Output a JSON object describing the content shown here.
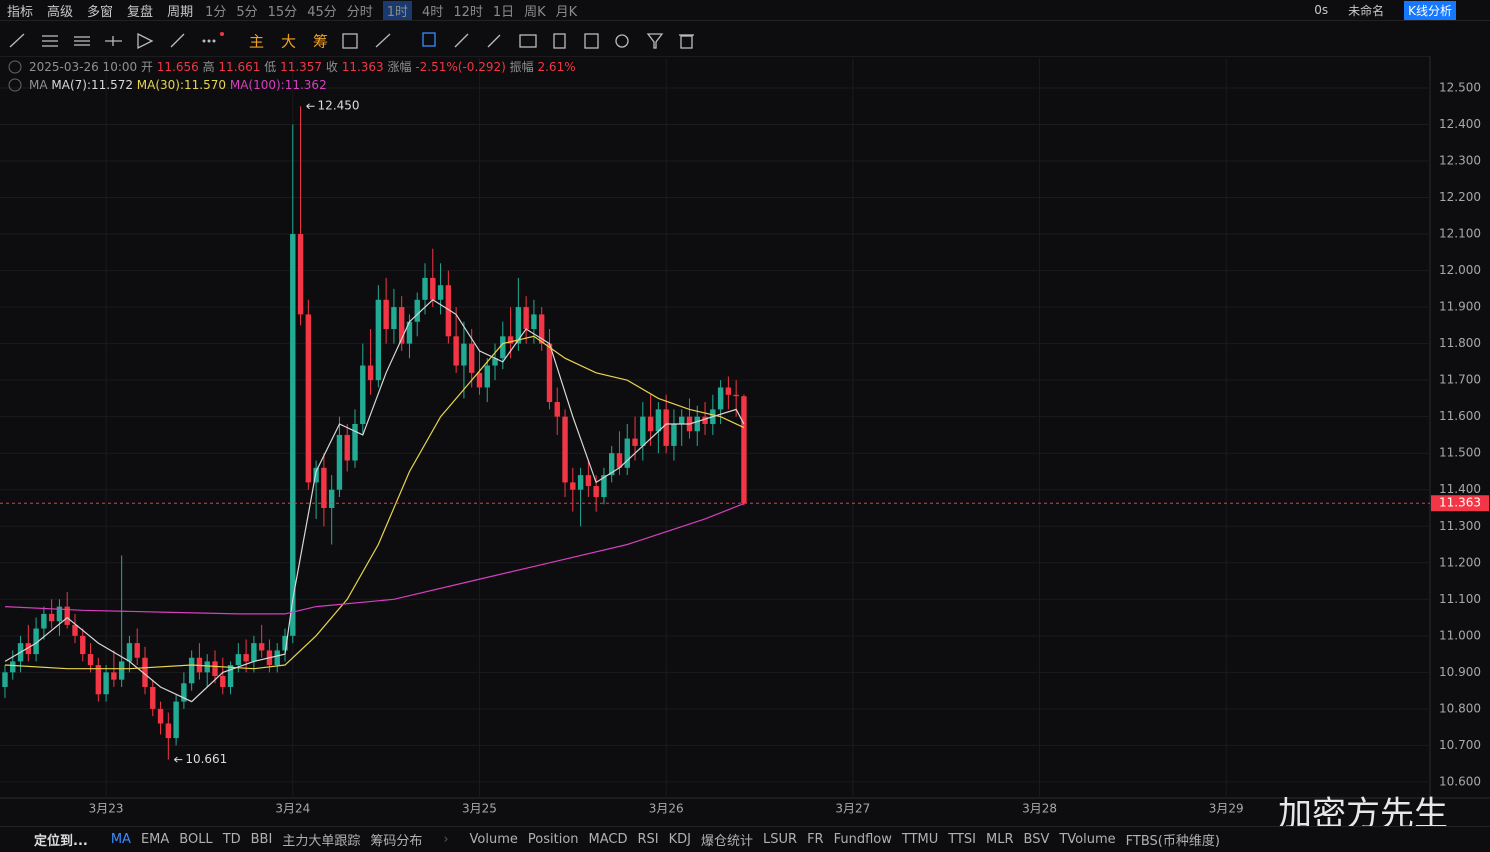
{
  "toolbar": {
    "left": [
      "指标",
      "高级",
      "多窗",
      "复盘"
    ],
    "period_label": "周期",
    "periods": [
      "1分",
      "5分",
      "15分",
      "45分",
      "分时",
      "1时",
      "4时",
      "12时",
      "1日",
      "周K",
      "月K"
    ],
    "active_period": 5,
    "right": [
      "0s",
      "未命名"
    ],
    "analysis": "K线分析"
  },
  "tools2": [
    "主",
    "大",
    "筹"
  ],
  "info": {
    "time": "2025-03-26 10:00",
    "fields": [
      {
        "label": "开",
        "value": 11.656
      },
      {
        "label": "高",
        "value": 11.661
      },
      {
        "label": "低",
        "value": 11.357
      },
      {
        "label": "收",
        "value": 11.363
      },
      {
        "label": "涨幅",
        "value": "-2.51%(-0.292)"
      },
      {
        "label": "振幅",
        "value": "2.61%"
      }
    ]
  },
  "ma_label": "MA",
  "chart_data": {
    "type": "candlestick",
    "up_color": "#22ab94",
    "down_color": "#f23645",
    "candles": [
      [
        10.86,
        10.92,
        10.83,
        10.9
      ],
      [
        10.9,
        10.96,
        10.88,
        10.93
      ],
      [
        10.93,
        11.0,
        10.9,
        10.98
      ],
      [
        10.98,
        11.03,
        10.93,
        10.95
      ],
      [
        10.95,
        11.05,
        10.93,
        11.02
      ],
      [
        11.02,
        11.08,
        10.99,
        11.06
      ],
      [
        11.06,
        11.1,
        11.02,
        11.04
      ],
      [
        11.04,
        11.1,
        11.0,
        11.08
      ],
      [
        11.08,
        11.12,
        11.02,
        11.03
      ],
      [
        11.03,
        11.06,
        10.98,
        11.0
      ],
      [
        11.0,
        11.02,
        10.93,
        10.95
      ],
      [
        10.95,
        10.98,
        10.9,
        10.92
      ],
      [
        10.92,
        10.94,
        10.82,
        10.84
      ],
      [
        10.84,
        10.92,
        10.82,
        10.9
      ],
      [
        10.9,
        10.96,
        10.86,
        10.88
      ],
      [
        10.88,
        11.22,
        10.86,
        10.93
      ],
      [
        10.93,
        11.0,
        10.9,
        10.98
      ],
      [
        10.98,
        11.02,
        10.92,
        10.94
      ],
      [
        10.94,
        10.97,
        10.84,
        10.86
      ],
      [
        10.86,
        10.88,
        10.78,
        10.8
      ],
      [
        10.8,
        10.82,
        10.73,
        10.76
      ],
      [
        10.76,
        10.79,
        10.661,
        10.72
      ],
      [
        10.72,
        10.84,
        10.7,
        10.82
      ],
      [
        10.82,
        10.9,
        10.8,
        10.87
      ],
      [
        10.87,
        10.96,
        10.85,
        10.94
      ],
      [
        10.94,
        10.98,
        10.88,
        10.9
      ],
      [
        10.9,
        10.95,
        10.86,
        10.93
      ],
      [
        10.93,
        10.96,
        10.87,
        10.89
      ],
      [
        10.89,
        10.94,
        10.84,
        10.86
      ],
      [
        10.86,
        10.93,
        10.84,
        10.92
      ],
      [
        10.92,
        10.98,
        10.9,
        10.95
      ],
      [
        10.95,
        10.99,
        10.9,
        10.93
      ],
      [
        10.93,
        11.0,
        10.9,
        10.98
      ],
      [
        10.98,
        11.03,
        10.94,
        10.96
      ],
      [
        10.96,
        10.99,
        10.9,
        10.92
      ],
      [
        10.92,
        10.98,
        10.9,
        10.96
      ],
      [
        10.96,
        11.02,
        10.93,
        11.0
      ],
      [
        11.0,
        12.4,
        10.98,
        12.1
      ],
      [
        12.1,
        12.45,
        11.85,
        11.88
      ],
      [
        11.88,
        11.92,
        11.4,
        11.42
      ],
      [
        11.42,
        11.48,
        11.32,
        11.46
      ],
      [
        11.46,
        11.5,
        11.3,
        11.35
      ],
      [
        11.35,
        11.44,
        11.25,
        11.4
      ],
      [
        11.4,
        11.6,
        11.38,
        11.55
      ],
      [
        11.55,
        11.58,
        11.45,
        11.48
      ],
      [
        11.48,
        11.62,
        11.46,
        11.58
      ],
      [
        11.58,
        11.8,
        11.55,
        11.74
      ],
      [
        11.74,
        11.84,
        11.66,
        11.7
      ],
      [
        11.7,
        11.96,
        11.68,
        11.92
      ],
      [
        11.92,
        11.98,
        11.8,
        11.84
      ],
      [
        11.84,
        11.95,
        11.8,
        11.9
      ],
      [
        11.9,
        11.93,
        11.78,
        11.8
      ],
      [
        11.8,
        11.88,
        11.76,
        11.86
      ],
      [
        11.86,
        11.94,
        11.82,
        11.92
      ],
      [
        11.92,
        12.02,
        11.88,
        11.98
      ],
      [
        11.98,
        12.06,
        11.9,
        11.92
      ],
      [
        11.92,
        12.02,
        11.88,
        11.96
      ],
      [
        11.96,
        12.0,
        11.8,
        11.82
      ],
      [
        11.82,
        11.9,
        11.72,
        11.74
      ],
      [
        11.74,
        11.86,
        11.65,
        11.8
      ],
      [
        11.8,
        11.84,
        11.68,
        11.72
      ],
      [
        11.72,
        11.78,
        11.66,
        11.68
      ],
      [
        11.68,
        11.76,
        11.64,
        11.74
      ],
      [
        11.74,
        11.8,
        11.7,
        11.76
      ],
      [
        11.76,
        11.86,
        11.73,
        11.82
      ],
      [
        11.82,
        11.9,
        11.76,
        11.8
      ],
      [
        11.8,
        11.98,
        11.78,
        11.9
      ],
      [
        11.9,
        11.93,
        11.8,
        11.84
      ],
      [
        11.84,
        11.92,
        11.8,
        11.88
      ],
      [
        11.88,
        11.9,
        11.78,
        11.8
      ],
      [
        11.8,
        11.84,
        11.62,
        11.64
      ],
      [
        11.64,
        11.68,
        11.55,
        11.6
      ],
      [
        11.6,
        11.62,
        11.38,
        11.42
      ],
      [
        11.42,
        11.46,
        11.34,
        11.4
      ],
      [
        11.4,
        11.46,
        11.3,
        11.44
      ],
      [
        11.44,
        11.48,
        11.38,
        11.41
      ],
      [
        11.41,
        11.44,
        11.34,
        11.38
      ],
      [
        11.38,
        11.46,
        11.36,
        11.44
      ],
      [
        11.44,
        11.52,
        11.42,
        11.5
      ],
      [
        11.5,
        11.56,
        11.44,
        11.46
      ],
      [
        11.46,
        11.58,
        11.44,
        11.54
      ],
      [
        11.54,
        11.6,
        11.48,
        11.52
      ],
      [
        11.52,
        11.64,
        11.48,
        11.6
      ],
      [
        11.6,
        11.66,
        11.52,
        11.56
      ],
      [
        11.56,
        11.64,
        11.5,
        11.62
      ],
      [
        11.62,
        11.66,
        11.5,
        11.52
      ],
      [
        11.52,
        11.62,
        11.48,
        11.58
      ],
      [
        11.58,
        11.62,
        11.52,
        11.6
      ],
      [
        11.6,
        11.65,
        11.54,
        11.56
      ],
      [
        11.56,
        11.63,
        11.52,
        11.6
      ],
      [
        11.6,
        11.64,
        11.55,
        11.58
      ],
      [
        11.58,
        11.66,
        11.55,
        11.62
      ],
      [
        11.62,
        11.7,
        11.58,
        11.68
      ],
      [
        11.68,
        11.71,
        11.62,
        11.66
      ],
      [
        11.66,
        11.7,
        11.6,
        11.656
      ],
      [
        11.656,
        11.661,
        11.357,
        11.363
      ]
    ],
    "series": [
      {
        "name": "MA(7):11.572",
        "color": "#d8d8d8",
        "x": [
          0,
          4,
          8,
          12,
          16,
          20,
          24,
          28,
          32,
          36,
          37,
          40,
          43,
          46,
          49,
          52,
          55,
          58,
          61,
          64,
          67,
          70,
          73,
          76,
          79,
          82,
          85,
          88,
          91,
          94,
          95
        ],
        "values": [
          10.93,
          10.98,
          11.05,
          10.98,
          10.93,
          10.86,
          10.82,
          10.9,
          10.93,
          10.95,
          11.1,
          11.45,
          11.58,
          11.55,
          11.72,
          11.86,
          11.92,
          11.88,
          11.78,
          11.75,
          11.84,
          11.8,
          11.6,
          11.42,
          11.46,
          11.52,
          11.58,
          11.58,
          11.6,
          11.62,
          11.58
        ]
      },
      {
        "name": "MA(30):11.570",
        "color": "#e8d44d",
        "x": [
          0,
          8,
          16,
          24,
          32,
          36,
          40,
          44,
          48,
          52,
          56,
          60,
          64,
          68,
          72,
          76,
          80,
          84,
          88,
          92,
          95
        ],
        "values": [
          10.92,
          10.91,
          10.91,
          10.92,
          10.91,
          10.92,
          11.0,
          11.1,
          11.25,
          11.45,
          11.6,
          11.7,
          11.8,
          11.82,
          11.76,
          11.72,
          11.7,
          11.65,
          11.62,
          11.6,
          11.57
        ]
      },
      {
        "name": "MA(100):11.362",
        "color": "#d63fbf",
        "x": [
          0,
          10,
          20,
          30,
          36,
          40,
          50,
          60,
          70,
          80,
          90,
          95
        ],
        "values": [
          11.08,
          11.07,
          11.065,
          11.06,
          11.06,
          11.08,
          11.1,
          11.15,
          11.2,
          11.25,
          11.32,
          11.362
        ]
      }
    ],
    "xlim": [
      -0.64,
      183.2
    ],
    "xticks": [
      {
        "value": 13,
        "label": "3月23"
      },
      {
        "value": 37,
        "label": "3月24"
      },
      {
        "value": 61,
        "label": "3月25"
      },
      {
        "value": 85,
        "label": "3月26"
      },
      {
        "value": 109,
        "label": "3月27"
      },
      {
        "value": 133,
        "label": "3月28"
      },
      {
        "value": 157,
        "label": "3月29"
      }
    ],
    "ylim": [
      10.556,
      12.582
    ],
    "yticks": [
      {
        "value": 10.6,
        "label": "10.600"
      },
      {
        "value": 10.7,
        "label": "10.700"
      },
      {
        "value": 10.8,
        "label": "10.800"
      },
      {
        "value": 10.9,
        "label": "10.900"
      },
      {
        "value": 11.0,
        "label": "11.000"
      },
      {
        "value": 11.1,
        "label": "11.100"
      },
      {
        "value": 11.2,
        "label": "11.200"
      },
      {
        "value": 11.3,
        "label": "11.300"
      },
      {
        "value": 11.4,
        "label": "11.400"
      },
      {
        "value": 11.5,
        "label": "11.500"
      },
      {
        "value": 11.6,
        "label": "11.600"
      },
      {
        "value": 11.7,
        "label": "11.700"
      },
      {
        "value": 11.8,
        "label": "11.800"
      },
      {
        "value": 11.9,
        "label": "11.900"
      },
      {
        "value": 12.0,
        "label": "12.000"
      },
      {
        "value": 12.1,
        "label": "12.100"
      },
      {
        "value": 12.2,
        "label": "12.200"
      },
      {
        "value": 12.3,
        "label": "12.300"
      },
      {
        "value": 12.4,
        "label": "12.400"
      },
      {
        "value": 12.5,
        "label": "12.500"
      }
    ],
    "grid": true,
    "last_price": 11.363,
    "annotations": [
      {
        "x": 38,
        "value": 12.45,
        "label": "12.450"
      },
      {
        "x": 21,
        "value": 10.661,
        "label": "10.661"
      }
    ]
  },
  "bottom": {
    "locate": "定位到...",
    "main": [
      "MA",
      "EMA",
      "BOLL",
      "TD",
      "BBI",
      "主力大单跟踪",
      "筹码分布"
    ],
    "sub": [
      "Volume",
      "Position",
      "MACD",
      "RSI",
      "KDJ",
      "爆仓统计",
      "LSUR",
      "FR",
      "Fundflow",
      "TTMU",
      "TTSI",
      "MLR",
      "BSV",
      "TVolume",
      "FTBS(币种维度)"
    ]
  },
  "watermark": "加密方先生"
}
